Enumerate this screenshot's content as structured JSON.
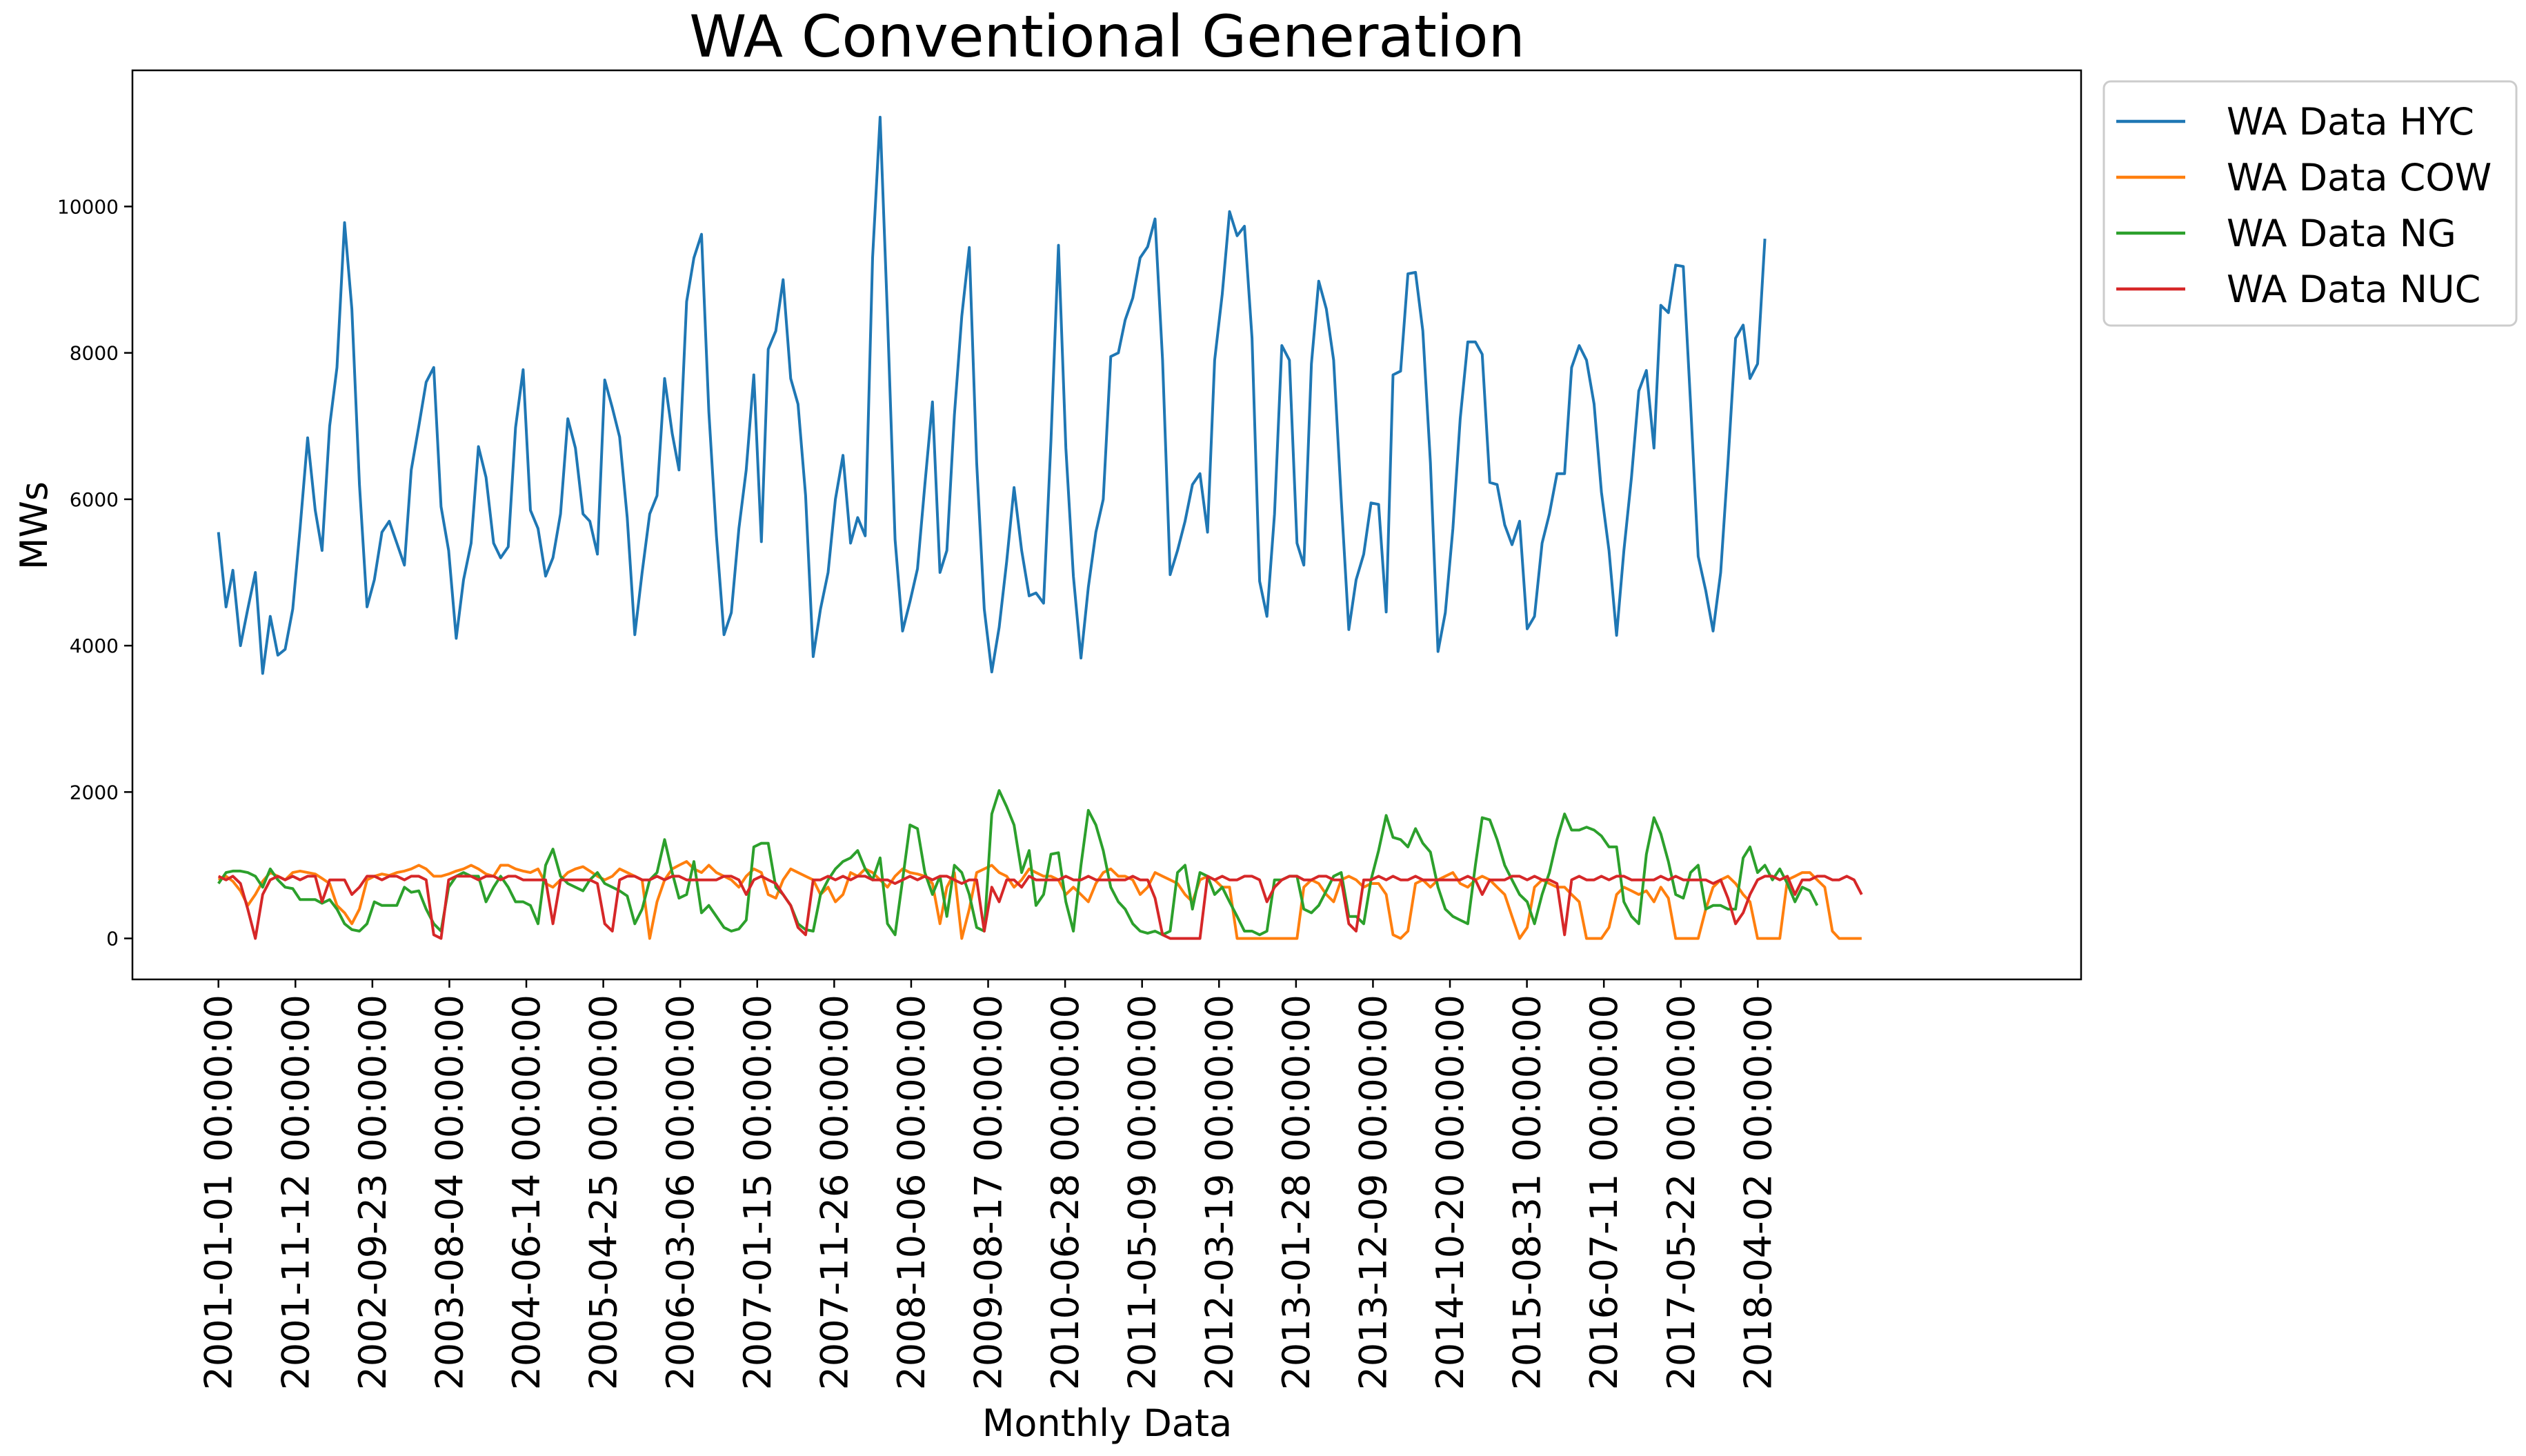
{
  "chart_data": {
    "type": "line",
    "title": "WA Conventional Generation",
    "xlabel": "Monthly Data",
    "ylabel": "MWs",
    "ylim": [
      -560,
      11860
    ],
    "yticks": [
      0,
      2000,
      4000,
      6000,
      8000,
      10000
    ],
    "x_start": "2001-01-01",
    "x_end": "2021-11-01",
    "xlim": [
      "2000-01-15",
      "2021-11-15"
    ],
    "xticks": [
      "2001-01-01 00:00:00",
      "2001-11-12 00:00:00",
      "2002-09-23 00:00:00",
      "2003-08-04 00:00:00",
      "2004-06-14 00:00:00",
      "2005-04-25 00:00:00",
      "2006-03-06 00:00:00",
      "2007-01-15 00:00:00",
      "2007-11-26 00:00:00",
      "2008-10-06 00:00:00",
      "2009-08-17 00:00:00",
      "2010-06-28 00:00:00",
      "2011-05-09 00:00:00",
      "2012-03-19 00:00:00",
      "2013-01-28 00:00:00",
      "2013-12-09 00:00:00",
      "2014-10-20 00:00:00",
      "2015-08-31 00:00:00",
      "2016-07-11 00:00:00",
      "2017-05-22 00:00:00",
      "2018-04-02 00:00:00"
    ],
    "legend_position": "outside-top-right",
    "grid": false,
    "series": [
      {
        "name": "WA Data HYC",
        "color": "#1f77b4",
        "values": [
          5550,
          4530,
          5030,
          4000,
          4500,
          5000,
          3620,
          4400,
          3870,
          3950,
          4500,
          5600,
          6840,
          5850,
          5300,
          7000,
          7800,
          9780,
          8600,
          6200,
          4530,
          4900,
          5550,
          5700,
          5400,
          5100,
          6400,
          7000,
          7600,
          7800,
          5900,
          5300,
          4100,
          4900,
          5400,
          6720,
          6300,
          5400,
          5200,
          5350,
          6980,
          7770,
          5850,
          5600,
          4950,
          5200,
          5800,
          7100,
          6700,
          5800,
          5700,
          5250,
          7630,
          7250,
          6850,
          5750,
          4150,
          5000,
          5800,
          6050,
          7650,
          6900,
          6400,
          8700,
          9300,
          9620,
          7200,
          5500,
          4150,
          4450,
          5600,
          6400,
          7700,
          5420,
          8050,
          8300,
          9000,
          7650,
          7300,
          6050,
          3850,
          4500,
          5000,
          6000,
          6600,
          5400,
          5750,
          5500,
          9300,
          11220,
          8500,
          5450,
          4200,
          4600,
          5050,
          6200,
          7330,
          5000,
          5300,
          7150,
          8500,
          9440,
          6500,
          4500,
          3640,
          4250,
          5150,
          6160,
          5300,
          4680,
          4720,
          4580,
          6800,
          9470,
          6700,
          4950,
          3830,
          4800,
          5550,
          6000,
          7950,
          8000,
          8450,
          8750,
          9300,
          9450,
          9830,
          7900,
          4970,
          5300,
          5700,
          6200,
          6350,
          5550,
          7900,
          8800,
          9930,
          9600,
          9730,
          8200,
          4880,
          4400,
          5800,
          8100,
          7900,
          5400,
          5100,
          7850,
          8980,
          8600,
          7900,
          6000,
          4220,
          4900,
          5250,
          5950,
          5930,
          4460,
          7700,
          7750,
          9080,
          9100,
          8300,
          6500,
          3920,
          4450,
          5600,
          7100,
          8150,
          8150,
          7980,
          6230,
          6200,
          5650,
          5380,
          5700,
          4230,
          4400,
          5400,
          5800,
          6350,
          6350,
          7800,
          8100,
          7900,
          7300,
          6100,
          5300,
          4140,
          5300,
          6300,
          7480,
          7760,
          6700,
          8650,
          8550,
          9200,
          9180,
          7300,
          5220,
          4750,
          4200,
          5000,
          6500,
          8200,
          8380,
          7650,
          7850,
          9560
        ]
      },
      {
        "name": "WA Data COW",
        "color": "#ff7f0e",
        "values": [
          800,
          850,
          780,
          650,
          450,
          600,
          780,
          900,
          850,
          800,
          900,
          920,
          900,
          880,
          820,
          750,
          450,
          350,
          200,
          400,
          800,
          850,
          880,
          860,
          900,
          920,
          950,
          1000,
          950,
          850,
          850,
          880,
          920,
          950,
          1000,
          950,
          880,
          850,
          1000,
          1000,
          950,
          920,
          900,
          950,
          750,
          700,
          800,
          900,
          950,
          980,
          920,
          850,
          800,
          850,
          950,
          900,
          850,
          800,
          0,
          500,
          800,
          950,
          1000,
          1050,
          950,
          900,
          1000,
          900,
          850,
          800,
          700,
          850,
          950,
          900,
          600,
          550,
          800,
          950,
          900,
          850,
          800,
          600,
          700,
          500,
          600,
          900,
          850,
          950,
          900,
          800,
          700,
          850,
          950,
          900,
          880,
          850,
          750,
          200,
          700,
          900,
          0,
          400,
          900,
          950,
          1000,
          900,
          850,
          700,
          800,
          950,
          900,
          850,
          850,
          800,
          600,
          700,
          600,
          500,
          750,
          900,
          950,
          850,
          850,
          800,
          600,
          700,
          900,
          850,
          800,
          750,
          600,
          500,
          800,
          850,
          800,
          700,
          700,
          0,
          0,
          0,
          0,
          0,
          0,
          0,
          0,
          0,
          700,
          800,
          750,
          600,
          500,
          800,
          850,
          800,
          700,
          750,
          750,
          600,
          50,
          0,
          100,
          750,
          800,
          700,
          800,
          850,
          900,
          750,
          700,
          800,
          850,
          800,
          700,
          600,
          300,
          0,
          150,
          700,
          800,
          750,
          700,
          700,
          600,
          500,
          0,
          0,
          0,
          150,
          600,
          700,
          650,
          600,
          650,
          500,
          700,
          550,
          0,
          0,
          0,
          0,
          400,
          700,
          800,
          850,
          750,
          600,
          500,
          0,
          0,
          0,
          0,
          800,
          850,
          900,
          900,
          800,
          700,
          100,
          0,
          0,
          0,
          0
        ]
      },
      {
        "name": "WA Data NG",
        "color": "#2ca02c",
        "values": [
          750,
          900,
          920,
          920,
          900,
          850,
          700,
          950,
          800,
          700,
          680,
          530,
          530,
          530,
          480,
          530,
          400,
          200,
          120,
          100,
          200,
          500,
          450,
          450,
          450,
          700,
          630,
          650,
          400,
          200,
          100,
          700,
          850,
          900,
          850,
          850,
          500,
          700,
          850,
          700,
          500,
          500,
          450,
          200,
          1000,
          1220,
          850,
          750,
          700,
          650,
          800,
          900,
          750,
          700,
          650,
          580,
          200,
          400,
          800,
          900,
          1350,
          900,
          550,
          600,
          1050,
          350,
          450,
          300,
          150,
          100,
          130,
          250,
          1250,
          1300,
          1300,
          700,
          600,
          450,
          200,
          120,
          100,
          600,
          800,
          950,
          1050,
          1100,
          1200,
          950,
          800,
          1100,
          200,
          50,
          800,
          1550,
          1500,
          900,
          600,
          850,
          300,
          1000,
          900,
          600,
          150,
          100,
          1700,
          2020,
          1800,
          1550,
          900,
          1200,
          450,
          600,
          1150,
          1170,
          500,
          100,
          1000,
          1750,
          1550,
          1200,
          700,
          500,
          400,
          200,
          100,
          70,
          100,
          50,
          100,
          900,
          1000,
          400,
          900,
          850,
          600,
          700,
          500,
          300,
          100,
          100,
          50,
          100,
          800,
          800,
          850,
          850,
          400,
          350,
          450,
          650,
          850,
          900,
          300,
          300,
          200,
          800,
          1200,
          1680,
          1380,
          1350,
          1250,
          1500,
          1300,
          1180,
          700,
          400,
          300,
          250,
          200,
          1000,
          1650,
          1620,
          1350,
          1000,
          800,
          600,
          500,
          200,
          600,
          900,
          1350,
          1700,
          1480,
          1480,
          1520,
          1480,
          1400,
          1250,
          1250,
          500,
          300,
          200,
          1150,
          1650,
          1430,
          1050,
          600,
          550,
          900,
          1000,
          400,
          450,
          450,
          400,
          400,
          1100,
          1250,
          900,
          1000,
          800,
          950,
          750,
          500,
          700,
          650,
          450
        ]
      },
      {
        "name": "WA Data NUC",
        "color": "#d62728",
        "values": [
          850,
          800,
          850,
          750,
          400,
          0,
          600,
          800,
          850,
          800,
          850,
          800,
          850,
          850,
          500,
          800,
          800,
          800,
          600,
          700,
          850,
          850,
          800,
          850,
          850,
          800,
          850,
          850,
          800,
          50,
          0,
          800,
          850,
          850,
          850,
          800,
          850,
          850,
          800,
          850,
          850,
          800,
          800,
          800,
          800,
          200,
          800,
          800,
          800,
          800,
          800,
          750,
          200,
          100,
          800,
          850,
          850,
          800,
          800,
          850,
          800,
          850,
          850,
          800,
          800,
          800,
          800,
          800,
          850,
          850,
          800,
          600,
          800,
          850,
          800,
          750,
          600,
          450,
          150,
          50,
          800,
          800,
          850,
          800,
          850,
          800,
          850,
          850,
          800,
          800,
          800,
          750,
          800,
          850,
          800,
          850,
          800,
          850,
          850,
          800,
          750,
          800,
          800,
          100,
          700,
          500,
          800,
          800,
          700,
          850,
          800,
          800,
          800,
          800,
          850,
          800,
          800,
          850,
          800,
          800,
          800,
          800,
          800,
          850,
          800,
          800,
          550,
          50,
          0,
          0,
          0,
          0,
          0,
          850,
          800,
          850,
          800,
          800,
          850,
          850,
          800,
          500,
          700,
          800,
          850,
          850,
          800,
          800,
          850,
          850,
          800,
          800,
          200,
          100,
          800,
          800,
          850,
          800,
          850,
          800,
          800,
          850,
          800,
          800,
          800,
          800,
          800,
          800,
          850,
          800,
          600,
          800,
          800,
          800,
          850,
          850,
          800,
          850,
          800,
          800,
          750,
          50,
          800,
          850,
          800,
          800,
          850,
          800,
          850,
          850,
          800,
          800,
          800,
          800,
          850,
          800,
          850,
          800,
          800,
          800,
          800,
          750,
          800,
          550,
          200,
          350,
          600,
          800,
          850,
          850,
          800,
          850,
          600,
          800,
          800,
          850,
          850,
          800,
          800,
          850,
          800,
          600
        ]
      }
    ]
  }
}
